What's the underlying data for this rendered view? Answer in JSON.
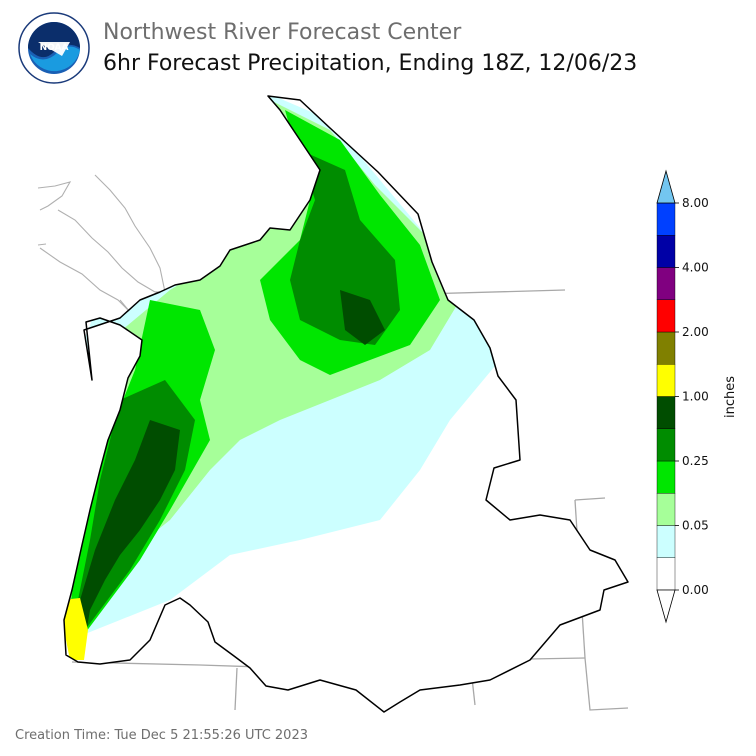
{
  "header": {
    "org_title": "Northwest River Forecast Center",
    "product_title": "6hr Forecast Precipitation, Ending 18Z, 12/06/23"
  },
  "logo": {
    "name": "NOAA",
    "ring_text": "NATIONAL OCEANIC AND ATMOSPHERIC ADMINISTRATION · U.S. DEPARTMENT OF COMMERCE",
    "icon": "noaa-seal-icon"
  },
  "colorbar": {
    "unit_label": "inches",
    "tick_labels": [
      "0.00",
      "0.05",
      "0.25",
      "1.00",
      "2.00",
      "4.00",
      "8.00"
    ],
    "bins": [
      {
        "color": "#ffffff"
      },
      {
        "color": "#ccffff"
      },
      {
        "color": "#a6ff99"
      },
      {
        "color": "#00e600"
      },
      {
        "color": "#008c00"
      },
      {
        "color": "#004d00"
      },
      {
        "color": "#ffff00"
      },
      {
        "color": "#808000"
      },
      {
        "color": "#ff0000"
      },
      {
        "color": "#800080"
      },
      {
        "color": "#0000a6"
      },
      {
        "color": "#0040ff"
      }
    ],
    "extend_min_color": "#ffffff",
    "extend_max_color": "#73c6f0"
  },
  "footer": {
    "creation_time": "Creation Time: Tue Dec 5 21:55:26 UTC 2023"
  }
}
